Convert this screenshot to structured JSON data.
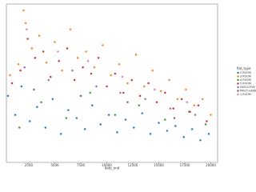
{
  "chart_data": {
    "type": "scatter",
    "x_label": "date_end",
    "legend_title": "flat_type",
    "legend_position": "right",
    "xlim": [
      350,
      20650
    ],
    "ylim": [
      0,
      100
    ],
    "xticks": [
      2500,
      5000,
      7500,
      10000,
      12500,
      15000,
      17500,
      20000
    ],
    "series": [
      {
        "name": "2 ROOM",
        "color": "#1f77b4",
        "x": [
          500,
          1200,
          1800,
          2600,
          3300,
          4100,
          4800,
          5600,
          6300,
          7100,
          7900,
          8600,
          9400,
          10200,
          11000,
          11800,
          12600,
          13400,
          14200,
          15000,
          15800,
          16600,
          17400,
          18200,
          19000,
          19800
        ],
        "values": [
          42,
          30,
          48,
          26,
          35,
          22,
          40,
          18,
          33,
          28,
          21,
          36,
          24,
          30,
          19,
          27,
          22,
          31,
          18,
          25,
          20,
          23,
          16,
          21,
          14,
          18
        ]
      },
      {
        "name": "3 ROOM",
        "color": "#ff7f0e",
        "x": [
          700,
          1500,
          2000,
          2200,
          2800,
          3500,
          4200,
          5000,
          5700,
          6500,
          7200,
          8000,
          8800,
          9600,
          10400,
          11200,
          12000,
          12800,
          13600,
          14400,
          15200,
          16000,
          16800,
          17600,
          18400,
          19200,
          20000
        ],
        "values": [
          55,
          62,
          96,
          88,
          72,
          80,
          63,
          76,
          58,
          84,
          66,
          70,
          60,
          74,
          55,
          62,
          50,
          68,
          48,
          58,
          45,
          52,
          40,
          46,
          36,
          40,
          30
        ]
      },
      {
        "name": "4 ROOM",
        "color": "#2ca02c",
        "x": [
          1600,
          3700,
          6100,
          8400,
          10800,
          13100,
          15600,
          17900,
          19500
        ],
        "values": [
          22,
          38,
          28,
          44,
          30,
          36,
          27,
          32,
          24
        ]
      },
      {
        "name": "5 ROOM",
        "color": "#d62728",
        "x": [
          900,
          1700,
          2400,
          3100,
          3900,
          4600,
          5400,
          6200,
          6900,
          7700,
          8500,
          9200,
          10000,
          10800,
          11600,
          12400,
          13200,
          14000,
          14800,
          15600,
          16400,
          17200,
          18000,
          18800,
          19600
        ],
        "values": [
          50,
          58,
          78,
          66,
          70,
          54,
          64,
          72,
          52,
          60,
          56,
          66,
          48,
          56,
          44,
          52,
          42,
          50,
          38,
          44,
          34,
          40,
          32,
          36,
          26
        ]
      },
      {
        "name": "EXECUTIVE",
        "color": "#9467bd",
        "x": [
          2100,
          4400,
          6700,
          9000,
          11300,
          13700,
          16100,
          18500
        ],
        "values": [
          60,
          52,
          58,
          48,
          44,
          40,
          34,
          30
        ]
      },
      {
        "name": "MULTI-GENERATION",
        "color": "#8c564b",
        "x": [
          3000,
          7500,
          12000,
          16500
        ],
        "values": [
          46,
          42,
          38,
          28
        ]
      },
      {
        "name": "1 ROOM",
        "color": "#e377c2",
        "x": [
          2300,
          5300,
          8200,
          11500,
          14600,
          17700
        ],
        "values": [
          84,
          70,
          64,
          54,
          46,
          38
        ]
      }
    ]
  }
}
